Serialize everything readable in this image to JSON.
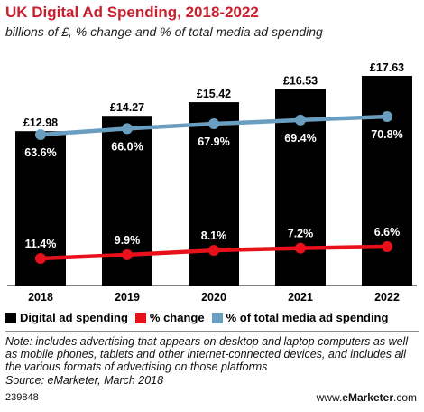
{
  "title": "UK Digital Ad Spending, 2018-2022",
  "subtitle": "billions of £, % change and % of total media ad spending",
  "legend": {
    "digital": "Digital ad spending",
    "change": "% change",
    "share": "% of total media ad spending"
  },
  "note": "Note: includes advertising that appears on desktop and laptop computers as well as mobile phones, tablets and other internet-connected devices, and includes all the various formats of advertising on those platforms",
  "source": "Source: eMarketer, March 2018",
  "chart_id": "239848",
  "footer": {
    "url_prefix": "www.",
    "brand": "eMarketer",
    "url_suffix": ".com"
  },
  "colors": {
    "bars": "#000000",
    "change": "#e8101a",
    "share": "#6a9ec0",
    "title": "#c8202f"
  },
  "chart_data": {
    "type": "bar",
    "categories": [
      "2018",
      "2019",
      "2020",
      "2021",
      "2022"
    ],
    "series": [
      {
        "name": "Digital ad spending",
        "type": "bar",
        "values": [
          12.98,
          14.27,
          15.42,
          16.53,
          17.63
        ],
        "labels": [
          "£12.98",
          "£14.27",
          "£15.42",
          "£16.53",
          "£17.63"
        ]
      },
      {
        "name": "% change",
        "type": "line",
        "values": [
          11.4,
          9.9,
          8.1,
          7.2,
          6.6
        ],
        "labels": [
          "11.4%",
          "9.9%",
          "8.1%",
          "7.2%",
          "6.6%"
        ]
      },
      {
        "name": "% of total media ad spending",
        "type": "line",
        "values": [
          63.6,
          66.0,
          67.9,
          69.4,
          70.8
        ],
        "labels": [
          "63.6%",
          "66.0%",
          "67.9%",
          "69.4%",
          "70.8%"
        ]
      }
    ],
    "legend_position": "bottom",
    "grid": false
  }
}
